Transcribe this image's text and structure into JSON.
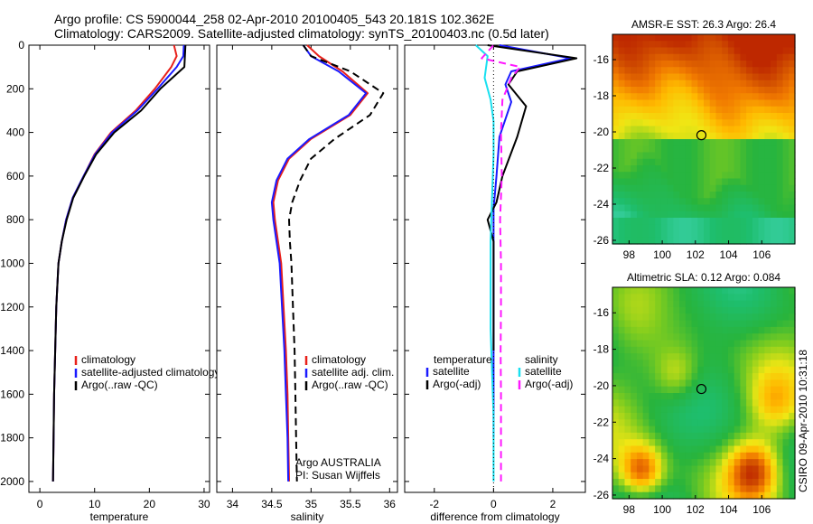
{
  "header": {
    "line1": "Argo profile: CS 5900044_258 02-Apr-2010 20100405_543 20.181S 102.362E",
    "line2": "Climatology: CARS2009. Satellite-adjusted climatology: synTS_20100403.nc (0.5d later)"
  },
  "footer": "CSIRO 09-Apr-2010 10:31:18",
  "colors": {
    "climatology": "#e8201a",
    "satellite": "#1a1aff",
    "argo": "#000000",
    "salinity_satellite": "#19e0f0",
    "salinity_argo": "#ff19ff"
  },
  "chart_data": [
    {
      "type": "line",
      "id": "temperature",
      "xlabel": "temperature",
      "ylabel": "",
      "xlim": [
        -2,
        31
      ],
      "ylim": [
        2050,
        0
      ],
      "y_reversed": true,
      "xticks": [
        0,
        10,
        20,
        30
      ],
      "yticks": [
        0,
        200,
        400,
        600,
        800,
        1000,
        1200,
        1400,
        1600,
        1800,
        2000
      ],
      "legend": [
        "climatology",
        "satellite-adjusted climatology",
        "Argo(..raw -QC)"
      ],
      "legend_position": "lower-center",
      "series": [
        {
          "name": "climatology",
          "color": "#e8201a",
          "style": "solid",
          "x": [
            24.5,
            25.0,
            24.0,
            21.0,
            17.5,
            13.0,
            10.0,
            8.0,
            6.0,
            4.8,
            4.0,
            3.4,
            3.0,
            2.8,
            2.6,
            2.5,
            2.4
          ],
          "y": [
            0,
            50,
            100,
            200,
            300,
            400,
            500,
            600,
            700,
            800,
            900,
            1000,
            1200,
            1400,
            1600,
            1800,
            2000
          ]
        },
        {
          "name": "satellite-adjusted climatology",
          "color": "#1a1aff",
          "style": "solid",
          "x": [
            26.3,
            26.2,
            25.0,
            21.5,
            17.8,
            13.2,
            10.1,
            8.0,
            6.0,
            4.8,
            4.0,
            3.4,
            3.0,
            2.8,
            2.6,
            2.5,
            2.4
          ],
          "y": [
            0,
            50,
            100,
            200,
            300,
            400,
            500,
            600,
            700,
            800,
            900,
            1000,
            1200,
            1400,
            1600,
            1800,
            2000
          ]
        },
        {
          "name": "Argo(..raw -QC)",
          "color": "#000000",
          "style": "solid",
          "x": [
            26.6,
            26.5,
            26.4,
            22.0,
            18.5,
            13.6,
            10.3,
            8.1,
            6.1,
            4.9,
            4.0,
            3.4,
            3.0,
            2.8,
            2.6,
            2.5,
            2.4
          ],
          "y": [
            0,
            50,
            100,
            200,
            300,
            400,
            500,
            600,
            700,
            800,
            900,
            1000,
            1200,
            1400,
            1600,
            1800,
            2000
          ]
        }
      ]
    },
    {
      "type": "line",
      "id": "salinity",
      "xlabel": "salinity",
      "ylabel": "",
      "xlim": [
        33.8,
        36.1
      ],
      "ylim": [
        2050,
        0
      ],
      "y_reversed": true,
      "xticks": [
        34,
        34.5,
        35,
        35.5,
        36
      ],
      "yticks": [
        0,
        200,
        400,
        600,
        800,
        1000,
        1200,
        1400,
        1600,
        1800,
        2000
      ],
      "legend": [
        "climatology",
        "satellite adj. clim.",
        "Argo(..raw -QC)"
      ],
      "legend_position": "lower-right",
      "annotation": [
        "Argo AUSTRALIA",
        "PI: Susan Wijffels"
      ],
      "series": [
        {
          "name": "climatology",
          "color": "#e8201a",
          "style": "solid",
          "x": [
            34.95,
            35.1,
            35.4,
            35.72,
            35.5,
            35.0,
            34.72,
            34.58,
            34.52,
            34.54,
            34.58,
            34.62,
            34.65,
            34.68,
            34.7,
            34.71,
            34.72
          ],
          "y": [
            0,
            50,
            120,
            220,
            320,
            430,
            520,
            620,
            720,
            800,
            900,
            1000,
            1200,
            1400,
            1600,
            1800,
            2000
          ]
        },
        {
          "name": "satellite adj. clim.",
          "color": "#1a1aff",
          "style": "solid",
          "x": [
            34.9,
            35.0,
            35.35,
            35.7,
            35.48,
            34.98,
            34.7,
            34.56,
            34.5,
            34.52,
            34.56,
            34.6,
            34.63,
            34.66,
            34.68,
            34.7,
            34.71
          ],
          "y": [
            0,
            50,
            120,
            220,
            320,
            430,
            520,
            620,
            720,
            800,
            900,
            1000,
            1200,
            1400,
            1600,
            1800,
            2000
          ]
        },
        {
          "name": "Argo(..raw -QC)",
          "color": "#000000",
          "style": "dashed",
          "x": [
            34.9,
            35.0,
            35.5,
            35.92,
            35.75,
            35.3,
            35.0,
            34.86,
            34.76,
            34.72,
            34.73,
            34.75,
            34.77,
            34.79,
            34.8,
            34.81,
            34.82
          ],
          "y": [
            0,
            50,
            120,
            220,
            320,
            430,
            520,
            620,
            720,
            800,
            900,
            1000,
            1200,
            1400,
            1600,
            1800,
            2000
          ]
        }
      ]
    },
    {
      "type": "line",
      "id": "difference",
      "xlabel": "difference from climatology",
      "ylabel": "",
      "xlim": [
        -3,
        3.1
      ],
      "ylim": [
        2050,
        0
      ],
      "y_reversed": true,
      "xticks": [
        -2,
        0,
        2
      ],
      "yticks": [
        0,
        200,
        400,
        600,
        800,
        1000,
        1200,
        1400,
        1600,
        1800,
        2000
      ],
      "legend_temperature_title": "temperature",
      "legend_salinity_title": "salinity",
      "legend_temperature": [
        "satellite",
        "Argo(-adj)"
      ],
      "legend_salinity": [
        "satellite",
        "Argo(-adj)"
      ],
      "legend_position": "lower-center",
      "series": [
        {
          "name": "temperature satellite",
          "color": "#1a1aff",
          "style": "solid",
          "x": [
            0.2,
            2.6,
            0.6,
            0.4,
            0.6,
            0.2,
            0.1,
            0.0,
            0.0,
            0.0,
            0.0,
            0.0,
            0.0,
            0.0
          ],
          "y": [
            0,
            60,
            120,
            180,
            260,
            420,
            600,
            750,
            900,
            1000,
            1200,
            1400,
            1600,
            1800
          ]
        },
        {
          "name": "temperature Argo(-adj)",
          "color": "#000000",
          "style": "solid",
          "x": [
            -0.2,
            2.8,
            0.8,
            0.5,
            1.1,
            0.8,
            0.3,
            0.1,
            -0.2,
            0.0,
            0.0,
            0.0,
            0.0
          ],
          "y": [
            0,
            60,
            120,
            180,
            280,
            420,
            600,
            720,
            800,
            900,
            1000,
            1200,
            1400
          ]
        },
        {
          "name": "salinity satellite",
          "color": "#19e0f0",
          "style": "solid",
          "x": [
            -0.6,
            -0.2,
            -0.3,
            -0.1,
            0.0,
            0.0,
            -0.05,
            -0.1,
            -0.1,
            -0.1,
            -0.05,
            0.0,
            0.0,
            0.0
          ],
          "y": [
            0,
            50,
            150,
            250,
            350,
            500,
            700,
            900,
            1100,
            1300,
            1500,
            1700,
            1900,
            2000
          ]
        },
        {
          "name": "salinity Argo(-adj)",
          "color": "#ff19ff",
          "style": "dashed",
          "x": [
            0.0,
            -0.4,
            0.9,
            0.6,
            0.3,
            0.25,
            0.28,
            0.22,
            0.25,
            0.25,
            0.24,
            0.25,
            0.25,
            0.25
          ],
          "y": [
            0,
            60,
            100,
            150,
            250,
            400,
            600,
            800,
            1000,
            1200,
            1400,
            1600,
            1800,
            2000
          ]
        }
      ]
    },
    {
      "type": "heatmap",
      "id": "sst-map",
      "title": "AMSR-E SST: 26.3 Argo: 26.4",
      "xlim": [
        97,
        108
      ],
      "ylim": [
        -26.2,
        -14.6
      ],
      "xticks": [
        98,
        100,
        102,
        104,
        106
      ],
      "yticks": [
        -16,
        -18,
        -20,
        -22,
        -24,
        -26
      ],
      "argo_position": {
        "lon": 102.362,
        "lat": -20.181
      },
      "description_values": {
        "sst": 26.3,
        "argo": 26.4
      }
    },
    {
      "type": "heatmap",
      "id": "sla-map",
      "title": "Altimetric SLA: 0.12 Argo: 0.084",
      "xlim": [
        97,
        108
      ],
      "ylim": [
        -26.2,
        -14.6
      ],
      "xticks": [
        98,
        100,
        102,
        104,
        106
      ],
      "yticks": [
        -16,
        -18,
        -20,
        -22,
        -24,
        -26
      ],
      "argo_position": {
        "lon": 102.362,
        "lat": -20.181
      },
      "description_values": {
        "sla": 0.12,
        "argo": 0.084
      }
    }
  ]
}
